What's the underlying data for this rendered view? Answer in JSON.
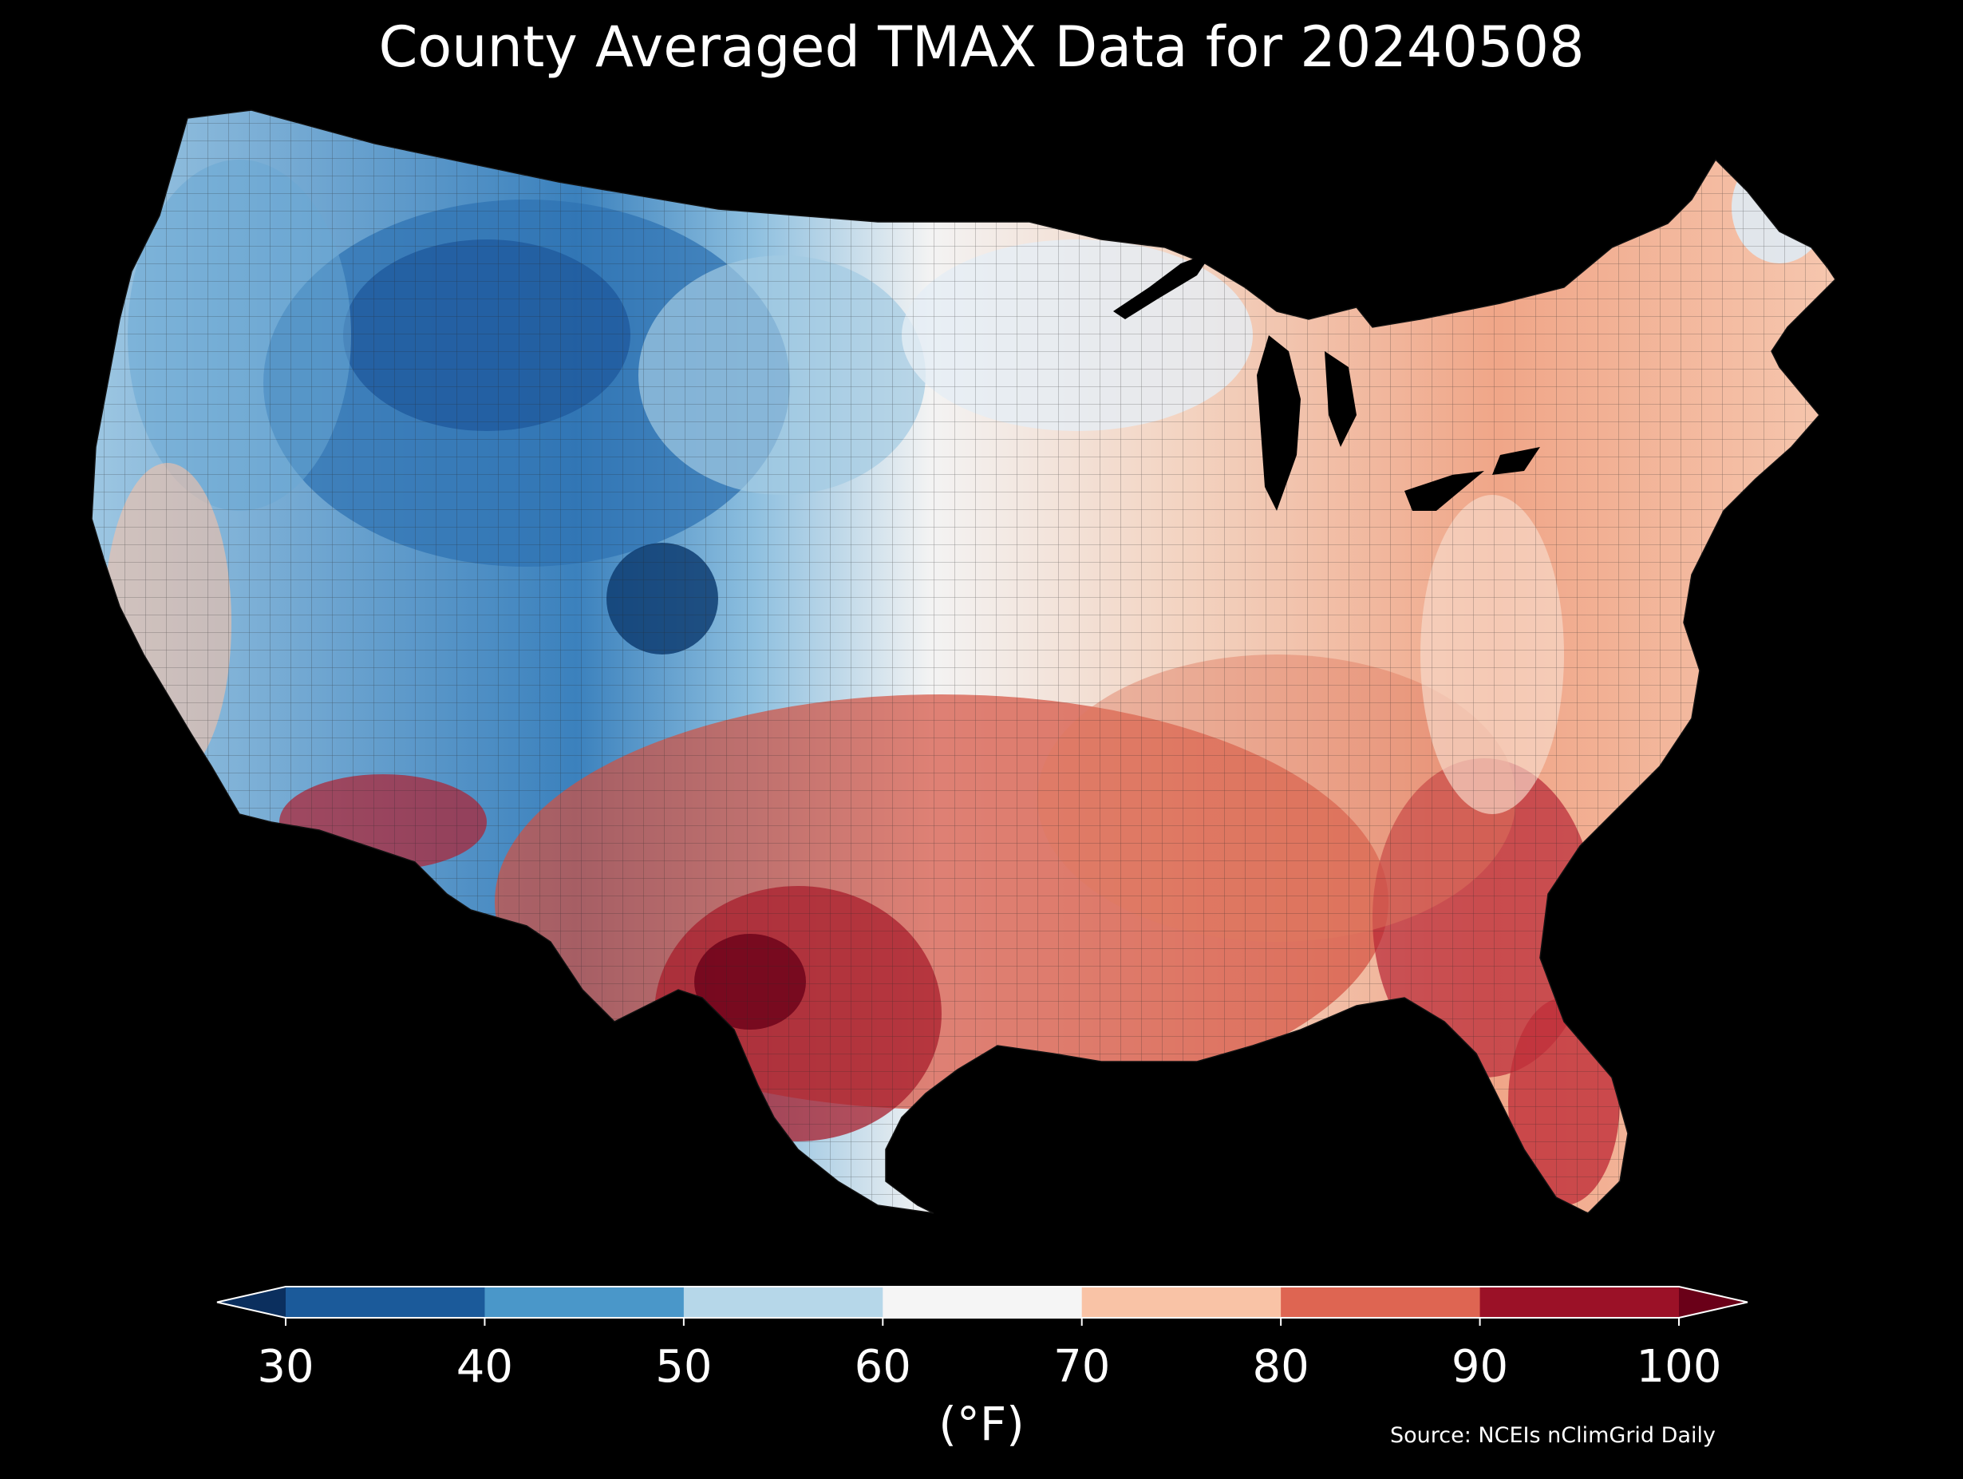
{
  "title": "County Averaged TMAX Data for 20240508",
  "colorbar": {
    "ticks": [
      "30",
      "40",
      "50",
      "60",
      "70",
      "80",
      "90",
      "100"
    ],
    "unit": "(°F)",
    "bins": [
      {
        "range": "<30",
        "color": "#0b2f5e"
      },
      {
        "range": "30-40",
        "color": "#1b5a9a"
      },
      {
        "range": "40-50",
        "color": "#4a97c9"
      },
      {
        "range": "50-60",
        "color": "#b6d7e9"
      },
      {
        "range": "60-70",
        "color": "#f5f5f5"
      },
      {
        "range": "70-80",
        "color": "#f9c3a6"
      },
      {
        "range": "80-90",
        "color": "#de6552"
      },
      {
        "range": "90-100",
        "color": "#9b1127"
      },
      {
        "range": ">100",
        "color": "#6a0018"
      }
    ]
  },
  "source": "Source: NCEIs nClimGrid Daily"
}
